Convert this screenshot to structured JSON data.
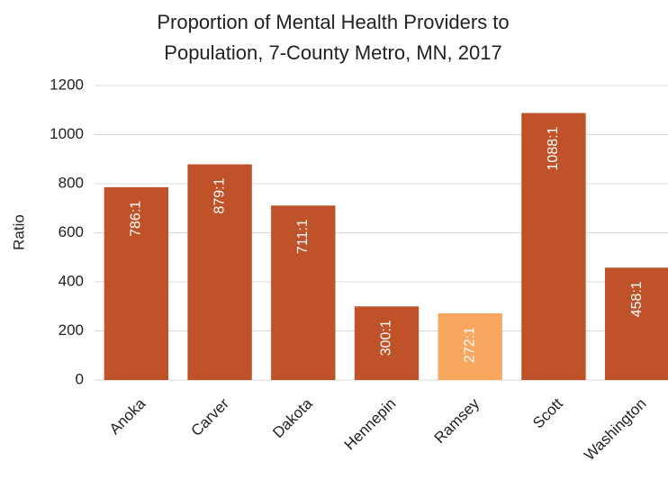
{
  "chart_data": {
    "type": "bar",
    "title": [
      "Proportion of Mental Health Providers to",
      "Population, 7-County Metro, MN, 2017"
    ],
    "y_label": "Ratio",
    "categories": [
      "Anoka",
      "Carver",
      "Dakota",
      "Hennepin",
      "Ramsey",
      "Scott",
      "Washington"
    ],
    "values": [
      786,
      879,
      711,
      300,
      272,
      1088,
      458
    ],
    "value_labels": [
      "786:1",
      "879:1",
      "711:1",
      "300:1",
      "272:1",
      "1088:1",
      "458:1"
    ],
    "colors": [
      "#bf5229",
      "#bf5229",
      "#bf5229",
      "#bf5229",
      "#f9a65f",
      "#bf5229",
      "#bf5229"
    ],
    "ylim": [
      0,
      1200
    ],
    "yticks": [
      0,
      200,
      400,
      600,
      800,
      1000,
      1200
    ],
    "grid": true
  }
}
